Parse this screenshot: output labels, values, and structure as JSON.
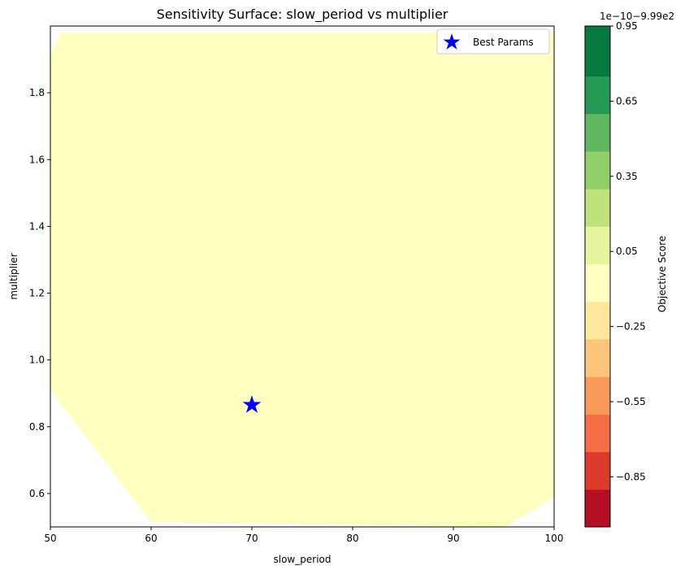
{
  "chart_data": {
    "type": "heatmap",
    "title": "Sensitivity Surface: slow_period vs multiplier",
    "xlabel": "slow_period",
    "ylabel": "multiplier",
    "xlim": [
      50,
      100
    ],
    "ylim": [
      0.5,
      2.0
    ],
    "x_ticks": [
      50,
      60,
      70,
      80,
      90,
      100
    ],
    "y_ticks": [
      0.6,
      0.8,
      1.0,
      1.2,
      1.4,
      1.6,
      1.8
    ],
    "surface_color": "#ffffc0",
    "surface_region": [
      [
        51,
        1.98
      ],
      [
        100,
        1.98
      ],
      [
        100,
        0.59
      ],
      [
        98,
        0.55
      ],
      [
        95,
        0.5
      ],
      [
        60,
        0.515
      ],
      [
        50,
        0.91
      ],
      [
        50,
        1.91
      ]
    ],
    "best_params": {
      "label": "Best Params",
      "x": 70,
      "y": 0.865,
      "color": "#0000ff"
    },
    "legend": {
      "entries": [
        "Best Params"
      ],
      "position": "top-right"
    },
    "colorbar": {
      "label": "Objective Score",
      "offset_text": "1e−10−9.99e2",
      "range": [
        -1.05,
        0.95
      ],
      "ticks": [
        -0.85,
        -0.55,
        -0.25,
        0.05,
        0.35,
        0.65,
        0.95
      ],
      "tick_labels": [
        "−0.85",
        "−0.55",
        "−0.25",
        "0.05",
        "0.35",
        "0.65",
        "0.95"
      ],
      "levels": [
        {
          "from": -1.05,
          "to": -0.9,
          "color": "#b50f26"
        },
        {
          "from": -0.9,
          "to": -0.75,
          "color": "#dd3b2b"
        },
        {
          "from": -0.75,
          "to": -0.6,
          "color": "#f46d43"
        },
        {
          "from": -0.6,
          "to": -0.45,
          "color": "#f99a59"
        },
        {
          "from": -0.45,
          "to": -0.3,
          "color": "#fdc57a"
        },
        {
          "from": -0.3,
          "to": -0.15,
          "color": "#fee69b"
        },
        {
          "from": -0.15,
          "to": 0.0,
          "color": "#ffffc0"
        },
        {
          "from": 0.0,
          "to": 0.15,
          "color": "#e6f59d"
        },
        {
          "from": 0.15,
          "to": 0.3,
          "color": "#bfe37a"
        },
        {
          "from": 0.3,
          "to": 0.45,
          "color": "#92cf68"
        },
        {
          "from": 0.45,
          "to": 0.6,
          "color": "#5fb860"
        },
        {
          "from": 0.6,
          "to": 0.75,
          "color": "#239b55"
        },
        {
          "from": 0.75,
          "to": 0.95,
          "color": "#077a40"
        }
      ]
    }
  }
}
